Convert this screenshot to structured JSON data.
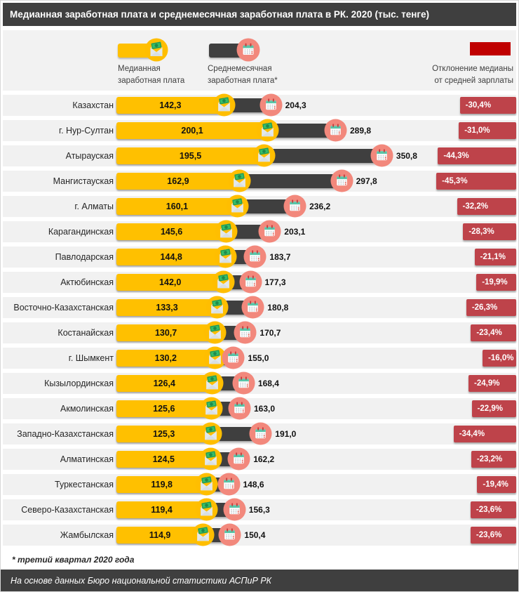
{
  "page": {
    "title": "Медианная заработная плата и среднемесячная заработная плата в РК. 2020 (тыс. тенге)",
    "footnote": "* третий квартал 2020 года",
    "source": "На основе данных Бюро национальной статистики  АСПиР РК"
  },
  "legend": {
    "median": {
      "line1": "Медианная",
      "line2": "заработная плата"
    },
    "average": {
      "line1": "Среднемесячная",
      "line2": "заработная плата*"
    },
    "deviation": {
      "line1": "Отклонение медианы",
      "line2": "от средней зарплаты"
    }
  },
  "icons": {
    "median_icon": "money-envelope",
    "average_icon": "calendar"
  },
  "colors": {
    "title_bar": "#3F3F3F",
    "median_bar": "#FFC000",
    "average_bar": "#3F3F3F",
    "deviation_bar": "#BE434A",
    "deviation_legend_swatch": "#C00000",
    "average_icon_circle": "#F2887C",
    "median_icon_circle": "#FFBE00",
    "row_strip": "#F1F1F1"
  },
  "chart_data": {
    "type": "bar",
    "orientation": "horizontal",
    "title": "Медианная заработная плата и среднемесячная заработная плата в РК. 2020 (тыс. тенге)",
    "unit": "тыс. тенге",
    "year": "2020",
    "value_axis_range": [
      0,
      360
    ],
    "grid": false,
    "legend_position": "top",
    "categories": [
      "Казахстан",
      "г. Нур-Султан",
      "Атырауская",
      "Мангистауская",
      "г. Алматы",
      "Карагандинская",
      "Павлодарская",
      "Актюбинская",
      "Восточно-Казахстанская",
      "Костанайская",
      "г. Шымкент",
      "Кызылординская",
      "Акмолинская",
      "Западно-Казахстанская",
      "Алматинская",
      "Туркестанская",
      "Северо-Казахстанская",
      "Жамбылская"
    ],
    "series": [
      {
        "name": "Медианная заработная плата",
        "color": "#FFC000",
        "values": [
          142.3,
          200.1,
          195.5,
          162.9,
          160.1,
          145.6,
          144.8,
          142.0,
          133.3,
          130.7,
          130.2,
          126.4,
          125.6,
          125.3,
          124.5,
          119.8,
          119.4,
          114.9
        ],
        "labels": [
          "142,3",
          "200,1",
          "195,5",
          "162,9",
          "160,1",
          "145,6",
          "144,8",
          "142,0",
          "133,3",
          "130,7",
          "130,2",
          "126,4",
          "125,6",
          "125,3",
          "124,5",
          "119,8",
          "119,4",
          "114,9"
        ]
      },
      {
        "name": "Среднемесячная заработная плата*",
        "color": "#3F3F3F",
        "values": [
          204.3,
          289.8,
          350.8,
          297.8,
          236.2,
          203.1,
          183.7,
          177.3,
          180.8,
          170.7,
          155.0,
          168.4,
          163.0,
          191.0,
          162.2,
          148.6,
          156.3,
          150.4
        ],
        "labels": [
          "204,3",
          "289,8",
          "350,8",
          "297,8",
          "236,2",
          "203,1",
          "183,7",
          "177,3",
          "180,8",
          "170,7",
          "155,0",
          "168,4",
          "163,0",
          "191,0",
          "162,2",
          "148,6",
          "156,3",
          "150,4"
        ]
      },
      {
        "name": "Отклонение медианы от средней зарплаты",
        "color": "#BE434A",
        "values": [
          -30.4,
          -31.0,
          -44.3,
          -45.3,
          -32.2,
          -28.3,
          -21.1,
          -19.9,
          -26.3,
          -23.4,
          -16.0,
          -24.9,
          -22.9,
          -34.4,
          -23.2,
          -19.4,
          -23.6,
          -23.6
        ],
        "labels": [
          "-30,4%",
          "-31,0%",
          "-44,3%",
          "-45,3%",
          "-32,2%",
          "-28,3%",
          "-21,1%",
          "-19,9%",
          "-26,3%",
          "-23,4%",
          "-16,0%",
          "-24,9%",
          "-22,9%",
          "-34,4%",
          "-23,2%",
          "-19,4%",
          "-23,6%",
          "-23,6%"
        ]
      }
    ]
  }
}
